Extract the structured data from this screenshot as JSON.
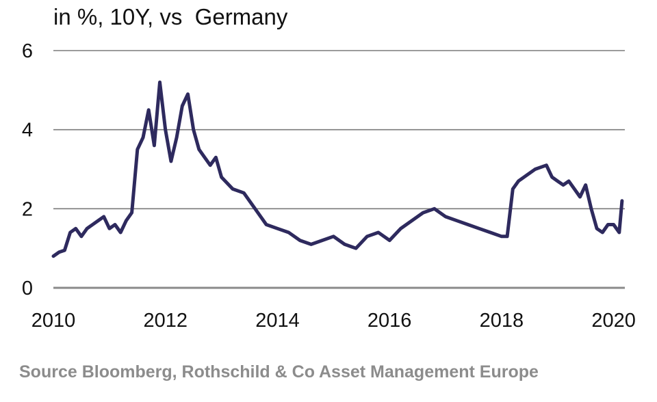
{
  "chart_data": {
    "type": "line",
    "title": "in %, 10Y, vs  Germany",
    "xlabel": "",
    "ylabel": "",
    "xlim": [
      2010.0,
      2020.3
    ],
    "ylim": [
      0,
      6
    ],
    "yticks": [
      "0",
      "2",
      "4",
      "6"
    ],
    "xticks": [
      "2010",
      "2012",
      "2014",
      "2016",
      "2018",
      "2020"
    ],
    "grid": true,
    "series": [
      {
        "name": "10Y spread vs Germany",
        "color": "#2e2a5e",
        "x": [
          2010.0,
          2010.1,
          2010.2,
          2010.3,
          2010.4,
          2010.5,
          2010.6,
          2010.7,
          2010.8,
          2010.9,
          2011.0,
          2011.1,
          2011.2,
          2011.3,
          2011.4,
          2011.5,
          2011.6,
          2011.7,
          2011.8,
          2011.9,
          2012.0,
          2012.1,
          2012.2,
          2012.3,
          2012.4,
          2012.5,
          2012.6,
          2012.7,
          2012.8,
          2012.9,
          2013.0,
          2013.2,
          2013.4,
          2013.6,
          2013.8,
          2014.0,
          2014.2,
          2014.4,
          2014.6,
          2014.8,
          2015.0,
          2015.2,
          2015.4,
          2015.6,
          2015.8,
          2016.0,
          2016.2,
          2016.4,
          2016.6,
          2016.8,
          2017.0,
          2017.2,
          2017.4,
          2017.6,
          2017.8,
          2018.0,
          2018.1,
          2018.2,
          2018.3,
          2018.4,
          2018.6,
          2018.8,
          2018.9,
          2019.0,
          2019.1,
          2019.2,
          2019.3,
          2019.4,
          2019.5,
          2019.6,
          2019.7,
          2019.8,
          2019.9,
          2020.0,
          2020.1,
          2020.15
        ],
        "values": [
          0.8,
          0.9,
          0.95,
          1.4,
          1.5,
          1.3,
          1.5,
          1.6,
          1.7,
          1.8,
          1.5,
          1.6,
          1.4,
          1.7,
          1.9,
          3.5,
          3.8,
          4.5,
          3.6,
          5.2,
          4.0,
          3.2,
          3.8,
          4.6,
          4.9,
          4.0,
          3.5,
          3.3,
          3.1,
          3.3,
          2.8,
          2.5,
          2.4,
          2.0,
          1.6,
          1.5,
          1.4,
          1.2,
          1.1,
          1.2,
          1.3,
          1.1,
          1.0,
          1.3,
          1.4,
          1.2,
          1.5,
          1.7,
          1.9,
          2.0,
          1.8,
          1.7,
          1.6,
          1.5,
          1.4,
          1.3,
          1.3,
          2.5,
          2.7,
          2.8,
          3.0,
          3.1,
          2.8,
          2.7,
          2.6,
          2.7,
          2.5,
          2.3,
          2.6,
          2.0,
          1.5,
          1.4,
          1.6,
          1.6,
          1.4,
          2.2
        ]
      }
    ]
  },
  "source_note": "Source Bloomberg, Rothschild & Co Asset Management Europe"
}
